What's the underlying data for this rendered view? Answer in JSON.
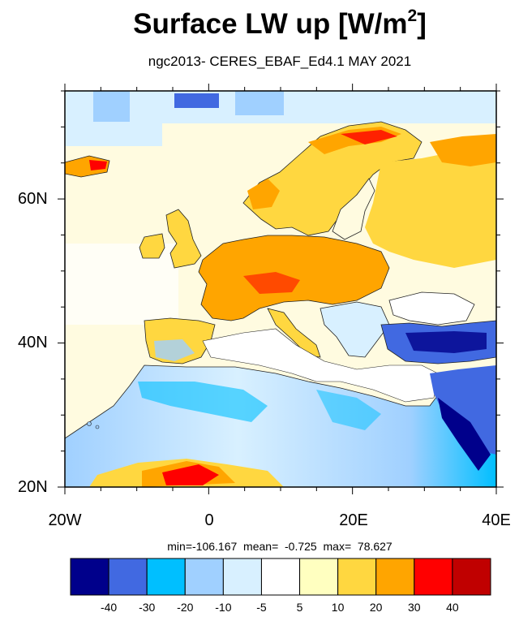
{
  "title": "Surface LW up [W/m",
  "title_sup": "2",
  "title_close": "]",
  "subtitle": "ngc2013- CERES_EBAF_Ed4.1 MAY 2021",
  "lat_labels": [
    "60N",
    "40N",
    "20N"
  ],
  "lon_labels": [
    "20W",
    "0",
    "20E",
    "40E"
  ],
  "stats": {
    "text": "min=-106.167  mean=  -0.725  max=  78.627",
    "min": -106.167,
    "mean": -0.725,
    "max": 78.627
  },
  "colorbar": {
    "colors": [
      "#00008b",
      "#4169e1",
      "#00bfff",
      "#a0d0ff",
      "#d8f0ff",
      "#ffffff",
      "#ffffc0",
      "#ffd740",
      "#ffa500",
      "#ff0000",
      "#c00000"
    ],
    "labels": [
      "-40",
      "-30",
      "-20",
      "-10",
      "-5",
      "5",
      "10",
      "20",
      "30",
      "40"
    ]
  },
  "map": {
    "lon_range": [
      -20,
      40
    ],
    "lat_range": [
      20,
      75
    ]
  }
}
